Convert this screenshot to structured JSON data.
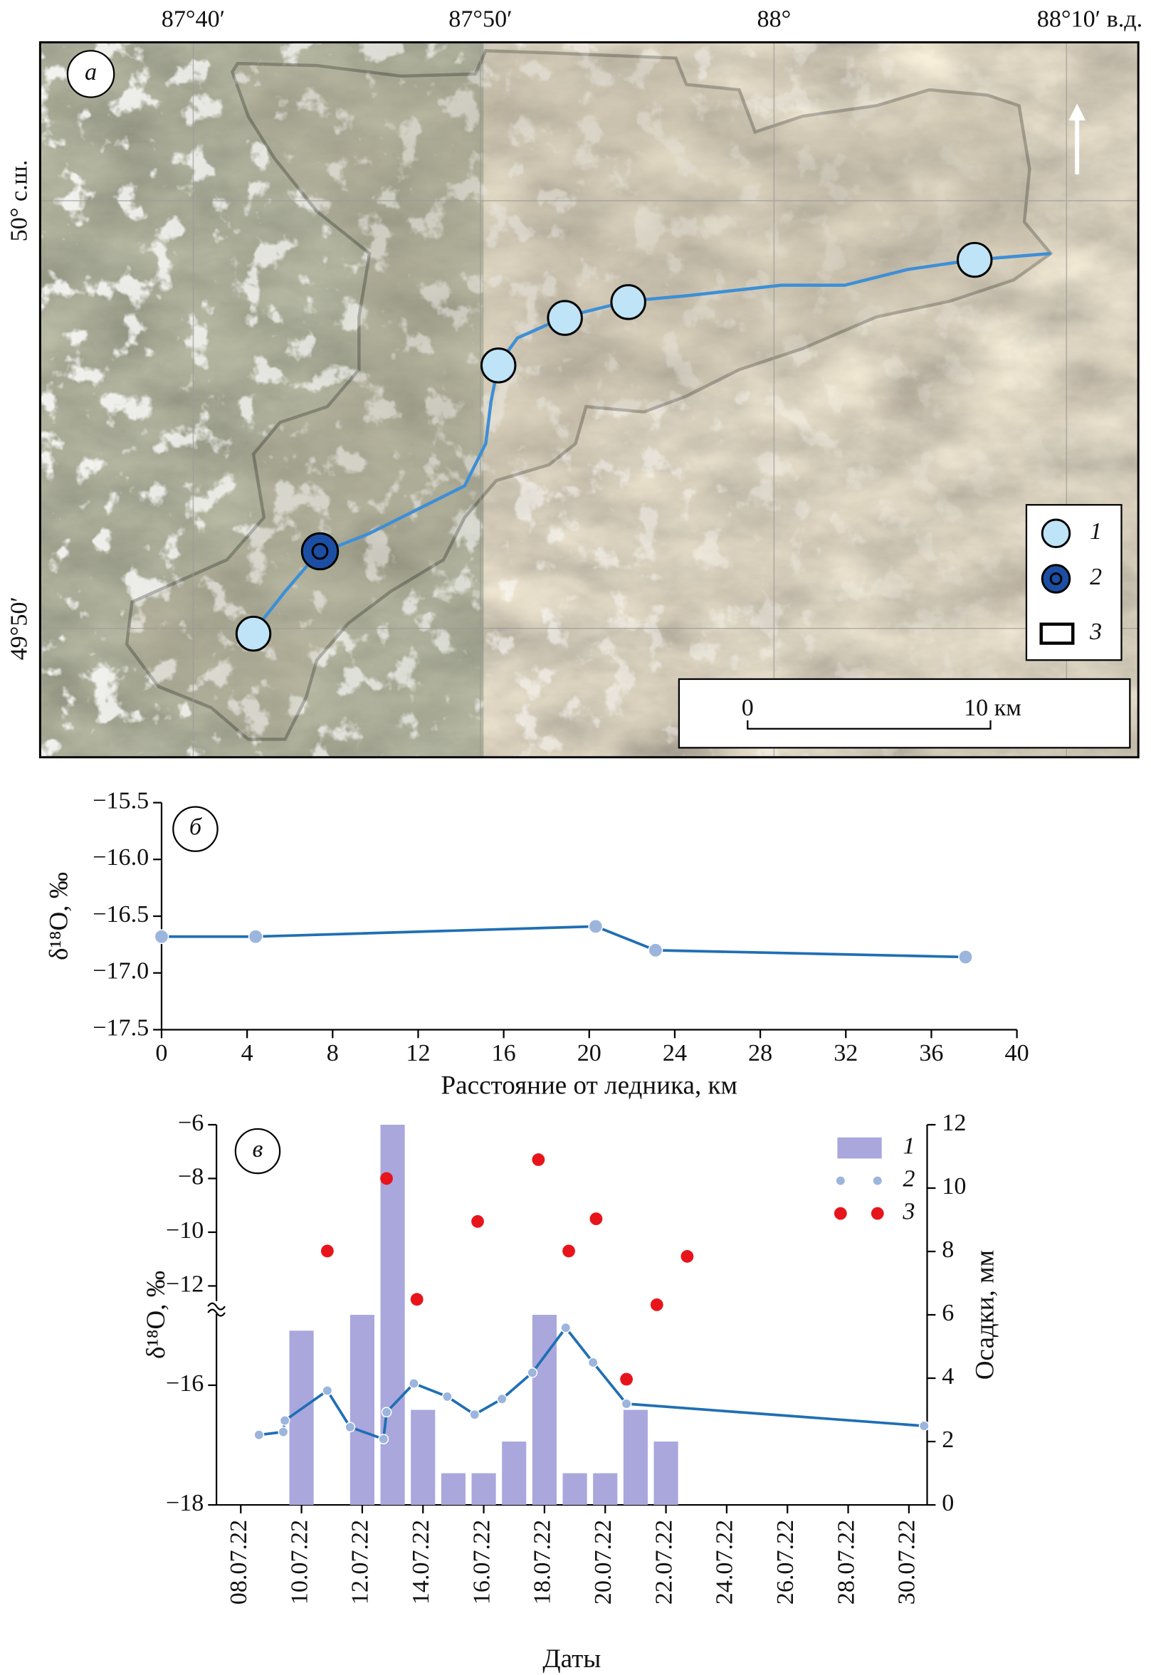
{
  "map": {
    "panel_label": "а",
    "lon_labels": [
      "87°40′",
      "87°50′",
      "88°",
      "88°10′ в.д."
    ],
    "lat_labels": [
      "50° с.ш.",
      "49°50′"
    ],
    "legend": [
      "1",
      "2",
      "3"
    ],
    "scale": [
      "0",
      "10 км"
    ]
  },
  "chart_data": [
    {
      "type": "line",
      "panel_label": "б",
      "x": [
        0,
        4.4,
        20.3,
        23.1,
        37.6
      ],
      "values": [
        -16.68,
        -16.68,
        -16.59,
        -16.8,
        -16.86
      ],
      "color": "#1f6fb4",
      "marker_color": "#9bb5dd",
      "xlim": [
        0,
        40
      ],
      "xticks": [
        0,
        4,
        8,
        12,
        16,
        20,
        24,
        28,
        32,
        36,
        40
      ],
      "ylim": [
        -17.5,
        -15.5
      ],
      "yticks": [
        {
          "value": -15.5,
          "label": "−15.5"
        },
        {
          "value": -16,
          "label": "−16.0"
        },
        {
          "value": -16.5,
          "label": "−16.5"
        },
        {
          "value": -17,
          "label": "−17.0"
        },
        {
          "value": -17.5,
          "label": "−17.5"
        }
      ],
      "xlabel": "Расстояние от ледника, км",
      "ylabel": "δ¹⁸O, ‰"
    },
    {
      "type": "combo",
      "panel_label": "в",
      "xlabel": "Даты",
      "ylabel": "δ¹⁸O, ‰",
      "y2label": "Осадки, мм",
      "xlim": [
        7.2,
        30.6
      ],
      "xticks": [
        {
          "value": 8,
          "label": "08.07.22"
        },
        {
          "value": 10,
          "label": "10.07.22"
        },
        {
          "value": 12,
          "label": "12.07.22"
        },
        {
          "value": 14,
          "label": "14.07.22"
        },
        {
          "value": 16,
          "label": "16.07.22"
        },
        {
          "value": 18,
          "label": "18.07.22"
        },
        {
          "value": 20,
          "label": "20.07.22"
        },
        {
          "value": 22,
          "label": "22.07.22"
        },
        {
          "value": 24,
          "label": "24.07.22"
        },
        {
          "value": 26,
          "label": "26.07.22"
        },
        {
          "value": 28,
          "label": "28.07.22"
        },
        {
          "value": 30,
          "label": "30.07.22"
        }
      ],
      "ylim": [
        -18,
        -6
      ],
      "y_break": [
        -14.7,
        -12.8
      ],
      "yticks": [
        {
          "value": -6,
          "label": "−6"
        },
        {
          "value": -8,
          "label": "−8"
        },
        {
          "value": -10,
          "label": "−10"
        },
        {
          "value": -12,
          "label": "−12"
        },
        {
          "value": -16,
          "label": "−16"
        },
        {
          "value": -18,
          "label": "−18"
        }
      ],
      "y2lim": [
        0,
        12
      ],
      "y2ticks": [
        0,
        2,
        4,
        6,
        8,
        10,
        12
      ],
      "series": [
        {
          "name": "1",
          "type": "bar",
          "axis": "y2",
          "color": "#aaa7dd",
          "x": [
            10,
            12,
            13,
            14,
            15,
            16,
            17,
            18,
            19,
            20,
            21,
            22
          ],
          "values": [
            5.5,
            6,
            12,
            3,
            1,
            1,
            2,
            6,
            1,
            1,
            3,
            2
          ]
        },
        {
          "name": "2",
          "type": "line",
          "color": "#1f6fb4",
          "marker_color": "#9bb5dd",
          "x": [
            8.6,
            9.4,
            9.45,
            10.85,
            11.6,
            12.7,
            12.8,
            13.7,
            14.8,
            15.7,
            16.6,
            17.6,
            18.7,
            19.6,
            20.7,
            30.5
          ],
          "values": [
            -16.83,
            -16.78,
            -16.59,
            -16.09,
            -16.7,
            -16.9,
            -16.45,
            -15.97,
            -16.19,
            -16.49,
            -16.23,
            -15.79,
            -15.04,
            -15.62,
            -16.31,
            -16.68
          ]
        },
        {
          "name": "3",
          "type": "scatter",
          "color": "#e8141b",
          "x": [
            10.85,
            12.8,
            13.8,
            15.8,
            17.8,
            18.8,
            19.7,
            20.7,
            21.7,
            22.7
          ],
          "values": [
            -10.7,
            -8,
            -12.5,
            -9.6,
            -7.3,
            -10.7,
            -9.5,
            -15.9,
            -12.7,
            -10.9
          ]
        }
      ]
    }
  ]
}
